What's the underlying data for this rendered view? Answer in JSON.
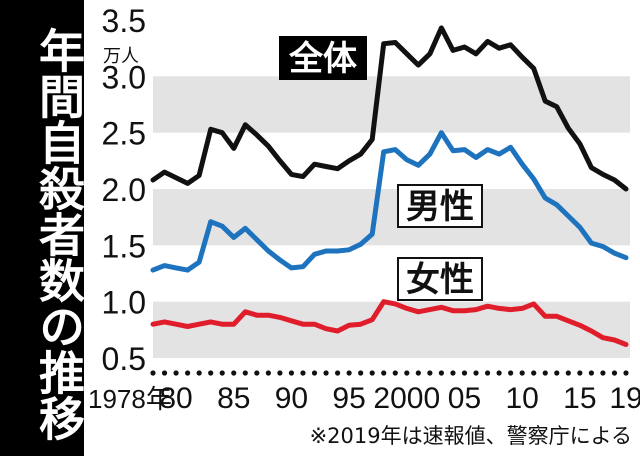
{
  "title": "年間自殺者数の推移",
  "note": "※2019年は速報値、警察庁による",
  "colors": {
    "total": "#111111",
    "male": "#1e73be",
    "female": "#e01e2b",
    "band": "#e3e3e3"
  },
  "chart_data": {
    "type": "line",
    "title": "年間自殺者数の推移",
    "unit_label": "万人",
    "ylim": [
      0.5,
      3.5
    ],
    "yticks": [
      "0.5",
      "1.0",
      "1.5",
      "2.0",
      "2.5",
      "3.0",
      "3.5"
    ],
    "xlim": [
      1978,
      2019
    ],
    "xtick_labels": [
      {
        "year": 1978,
        "label": "1978年"
      },
      {
        "year": 1980,
        "label": "80"
      },
      {
        "year": 1985,
        "label": "85"
      },
      {
        "year": 1990,
        "label": "90"
      },
      {
        "year": 1995,
        "label": "95"
      },
      {
        "year": 2000,
        "label": "2000"
      },
      {
        "year": 2005,
        "label": "05"
      },
      {
        "year": 2010,
        "label": "10"
      },
      {
        "year": 2015,
        "label": "15"
      },
      {
        "year": 2019,
        "label": "19"
      }
    ],
    "x": [
      1978,
      1979,
      1980,
      1981,
      1982,
      1983,
      1984,
      1985,
      1986,
      1987,
      1988,
      1989,
      1990,
      1991,
      1992,
      1993,
      1994,
      1995,
      1996,
      1997,
      1998,
      1999,
      2000,
      2001,
      2002,
      2003,
      2004,
      2005,
      2006,
      2007,
      2008,
      2009,
      2010,
      2011,
      2012,
      2013,
      2014,
      2015,
      2016,
      2017,
      2018,
      2019
    ],
    "series": [
      {
        "name": "全体",
        "key": "total",
        "values": [
          2.08,
          2.15,
          2.1,
          2.05,
          2.12,
          2.53,
          2.5,
          2.36,
          2.57,
          2.48,
          2.38,
          2.25,
          2.13,
          2.11,
          2.22,
          2.2,
          2.18,
          2.25,
          2.31,
          2.44,
          3.29,
          3.3,
          3.2,
          3.1,
          3.2,
          3.43,
          3.23,
          3.26,
          3.2,
          3.31,
          3.25,
          3.28,
          3.17,
          3.07,
          2.78,
          2.73,
          2.54,
          2.4,
          2.19,
          2.13,
          2.08,
          2.0
        ]
      },
      {
        "name": "男性",
        "key": "male",
        "values": [
          1.28,
          1.32,
          1.3,
          1.28,
          1.35,
          1.71,
          1.67,
          1.57,
          1.65,
          1.55,
          1.45,
          1.37,
          1.3,
          1.31,
          1.42,
          1.45,
          1.45,
          1.46,
          1.51,
          1.6,
          2.33,
          2.35,
          2.26,
          2.21,
          2.31,
          2.5,
          2.34,
          2.35,
          2.28,
          2.35,
          2.31,
          2.37,
          2.22,
          2.09,
          1.92,
          1.86,
          1.76,
          1.66,
          1.52,
          1.49,
          1.43,
          1.39
        ]
      },
      {
        "name": "女性",
        "key": "female",
        "values": [
          0.8,
          0.82,
          0.8,
          0.78,
          0.8,
          0.82,
          0.8,
          0.8,
          0.91,
          0.88,
          0.88,
          0.86,
          0.83,
          0.8,
          0.8,
          0.76,
          0.74,
          0.79,
          0.8,
          0.84,
          1.0,
          0.98,
          0.94,
          0.91,
          0.93,
          0.95,
          0.92,
          0.92,
          0.93,
          0.96,
          0.94,
          0.93,
          0.94,
          0.98,
          0.87,
          0.87,
          0.83,
          0.79,
          0.74,
          0.68,
          0.66,
          0.62
        ]
      }
    ],
    "labels": [
      {
        "series": "total",
        "text": "全体",
        "style": "inverse"
      },
      {
        "series": "male",
        "text": "男性",
        "style": "boxed"
      },
      {
        "series": "female",
        "text": "女性",
        "style": "boxed"
      }
    ]
  }
}
